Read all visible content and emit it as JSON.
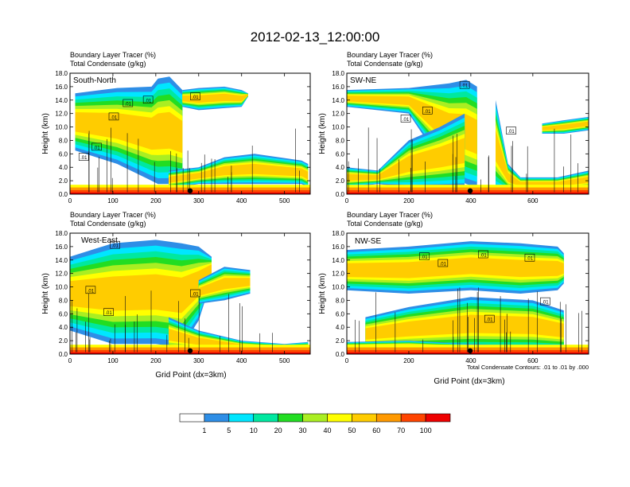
{
  "title": "2012-02-13_12:00:00",
  "colorbar": {
    "levels": [
      "1",
      "5",
      "10",
      "20",
      "30",
      "40",
      "50",
      "60",
      "70",
      "100"
    ],
    "colors": [
      "#ffffff",
      "#2e8ee6",
      "#00e6ff",
      "#00e8a0",
      "#22dd22",
      "#aaee22",
      "#ffff00",
      "#ffcc00",
      "#ff9900",
      "#ff4400",
      "#ee0000"
    ]
  },
  "xlabel": "Grid Point (dx=3km)",
  "contour_note": "Total Condensate Contours: .01 to .01 by .000",
  "contour_label": ".01",
  "chart_data": [
    {
      "type": "heatmap",
      "name": "South-North",
      "title_line1": "Boundary Layer Tracer   (%)",
      "title_line2": "Total Condensate   (g/kg)",
      "ylabel": "Height (km)",
      "ylim": [
        0,
        18
      ],
      "yticks": [
        "0.0",
        "2.0",
        "4.0",
        "6.0",
        "8.0",
        "10.0",
        "12.0",
        "14.0",
        "16.0",
        "18.0"
      ],
      "xlim": [
        0,
        560
      ],
      "xticks": [
        0,
        100,
        200,
        300,
        400,
        500
      ],
      "cloud": [
        {
          "x": [
            12,
            110,
            190,
            205,
            232,
            262
          ],
          "y_bot": [
            6.5,
            4.5,
            2.0,
            1.5,
            1.5,
            1.5
          ],
          "y_top": [
            15.0,
            15.8,
            16.0,
            17.2,
            17.5,
            15.5
          ]
        },
        {
          "x": [
            262,
            300,
            360,
            400,
            415
          ],
          "y_bot": [
            13.0,
            12.5,
            12.8,
            13.0,
            14.5
          ],
          "y_top": [
            15.5,
            15.8,
            16.0,
            15.5,
            15.0
          ]
        },
        {
          "x": [
            230,
            300,
            360,
            430,
            540,
            555
          ],
          "y_bot": [
            0.8,
            1.5,
            1.5,
            1.5,
            1.5,
            1.0
          ],
          "y_top": [
            3.5,
            4.0,
            5.5,
            6.0,
            5.0,
            4.5
          ]
        }
      ],
      "contour_labels": [
        {
          "x": 32,
          "y": 5.5
        },
        {
          "x": 62,
          "y": 7.0
        },
        {
          "x": 102,
          "y": 11.5
        },
        {
          "x": 135,
          "y": 13.5
        },
        {
          "x": 182,
          "y": 14.0
        },
        {
          "x": 292,
          "y": 14.5
        }
      ]
    },
    {
      "type": "heatmap",
      "name": "SW-NE",
      "title_line1": "Boundary Layer Tracer   (%)",
      "title_line2": "Total Condensate   (g/kg)",
      "ylabel": "Height (km)",
      "ylim": [
        0,
        18
      ],
      "yticks": [
        "0.0",
        "2.0",
        "4.0",
        "6.0",
        "8.0",
        "10.0",
        "12.0",
        "14.0",
        "16.0",
        "18.0"
      ],
      "xlim": [
        0,
        780
      ],
      "xticks": [
        0,
        200,
        400,
        600
      ],
      "cloud": [
        {
          "x": [
            0,
            200,
            330,
            385,
            420
          ],
          "y_bot": [
            13.0,
            12.0,
            3.0,
            1.5,
            1.0
          ],
          "y_top": [
            15.5,
            15.8,
            16.5,
            17.0,
            16.0
          ]
        },
        {
          "x": [
            0,
            100,
            200,
            300,
            380
          ],
          "y_bot": [
            1.0,
            1.5,
            1.0,
            1.0,
            1.0
          ],
          "y_top": [
            4.0,
            3.5,
            8.0,
            10.0,
            12.0
          ]
        },
        {
          "x": [
            480,
            520,
            560,
            680,
            780
          ],
          "y_bot": [
            0.5,
            0.5,
            0.5,
            0.5,
            0.8
          ],
          "y_top": [
            14.0,
            4.5,
            2.5,
            2.5,
            3.5
          ]
        },
        {
          "x": [
            630,
            700,
            780
          ],
          "y_bot": [
            9.0,
            9.0,
            9.5
          ],
          "y_top": [
            10.5,
            11.0,
            11.5
          ]
        }
      ],
      "contour_labels": [
        {
          "x": 190,
          "y": 11.2
        },
        {
          "x": 260,
          "y": 12.4
        },
        {
          "x": 380,
          "y": 16.2
        },
        {
          "x": 530,
          "y": 9.4
        }
      ]
    },
    {
      "type": "heatmap",
      "name": "West-East",
      "title_line1": "Boundary Layer Tracer   (%)",
      "title_line2": "Total Condensate   (g/kg)",
      "ylabel": "Height (km)",
      "ylim": [
        0,
        18
      ],
      "yticks": [
        "0.0",
        "2.0",
        "4.0",
        "6.0",
        "8.0",
        "10.0",
        "12.0",
        "14.0",
        "16.0",
        "18.0"
      ],
      "xlim": [
        0,
        560
      ],
      "xticks": [
        0,
        100,
        200,
        300,
        400,
        500
      ],
      "cloud": [
        {
          "x": [
            0,
            100,
            200,
            260,
            300,
            330
          ],
          "y_bot": [
            3.5,
            1.5,
            1.5,
            1.0,
            5.0,
            11.0
          ],
          "y_top": [
            14.5,
            16.5,
            17.0,
            16.5,
            16.0,
            14.5
          ]
        },
        {
          "x": [
            300,
            360,
            420
          ],
          "y_bot": [
            7.5,
            8.0,
            9.0
          ],
          "y_top": [
            11.0,
            13.0,
            12.5
          ]
        },
        {
          "x": [
            230,
            300,
            400,
            500,
            555
          ],
          "y_bot": [
            0.3,
            0.3,
            0.3,
            0.3,
            0.3
          ],
          "y_top": [
            5.5,
            3.5,
            2.0,
            1.5,
            1.8
          ]
        }
      ],
      "contour_labels": [
        {
          "x": 105,
          "y": 16.2
        },
        {
          "x": 48,
          "y": 9.5
        },
        {
          "x": 90,
          "y": 6.2
        },
        {
          "x": 292,
          "y": 9.0
        }
      ]
    },
    {
      "type": "heatmap",
      "name": "NW-SE",
      "title_line1": "Boundary Layer Tracer   (%)",
      "title_line2": "Total Condensate   (g/kg)",
      "ylabel": "Height (km)",
      "ylim": [
        0,
        18
      ],
      "yticks": [
        "0.0",
        "2.0",
        "4.0",
        "6.0",
        "8.0",
        "10.0",
        "12.0",
        "14.0",
        "16.0",
        "18.0"
      ],
      "xlim": [
        0,
        780
      ],
      "xticks": [
        0,
        200,
        400,
        600
      ],
      "cloud": [
        {
          "x": [
            0,
            200,
            400,
            560,
            680,
            700
          ],
          "y_bot": [
            9.5,
            9.0,
            9.5,
            9.0,
            9.5,
            10.5
          ],
          "y_top": [
            15.5,
            16.0,
            16.8,
            16.5,
            16.0,
            15.0
          ]
        },
        {
          "x": [
            60,
            200,
            400,
            600,
            700
          ],
          "y_bot": [
            0.5,
            0.5,
            0.5,
            0.5,
            0.5
          ],
          "y_top": [
            5.5,
            7.0,
            8.5,
            8.0,
            6.5
          ]
        },
        {
          "x": [
            0,
            200,
            400,
            600,
            780
          ],
          "y_bot": [
            0.3,
            0.3,
            0.3,
            0.3,
            0.3
          ],
          "y_top": [
            1.8,
            2.0,
            1.5,
            1.2,
            1.0
          ]
        }
      ],
      "contour_labels": [
        {
          "x": 250,
          "y": 14.5
        },
        {
          "x": 310,
          "y": 13.5
        },
        {
          "x": 440,
          "y": 14.8
        },
        {
          "x": 590,
          "y": 14.3
        },
        {
          "x": 640,
          "y": 7.8
        },
        {
          "x": 460,
          "y": 5.2
        }
      ]
    }
  ]
}
